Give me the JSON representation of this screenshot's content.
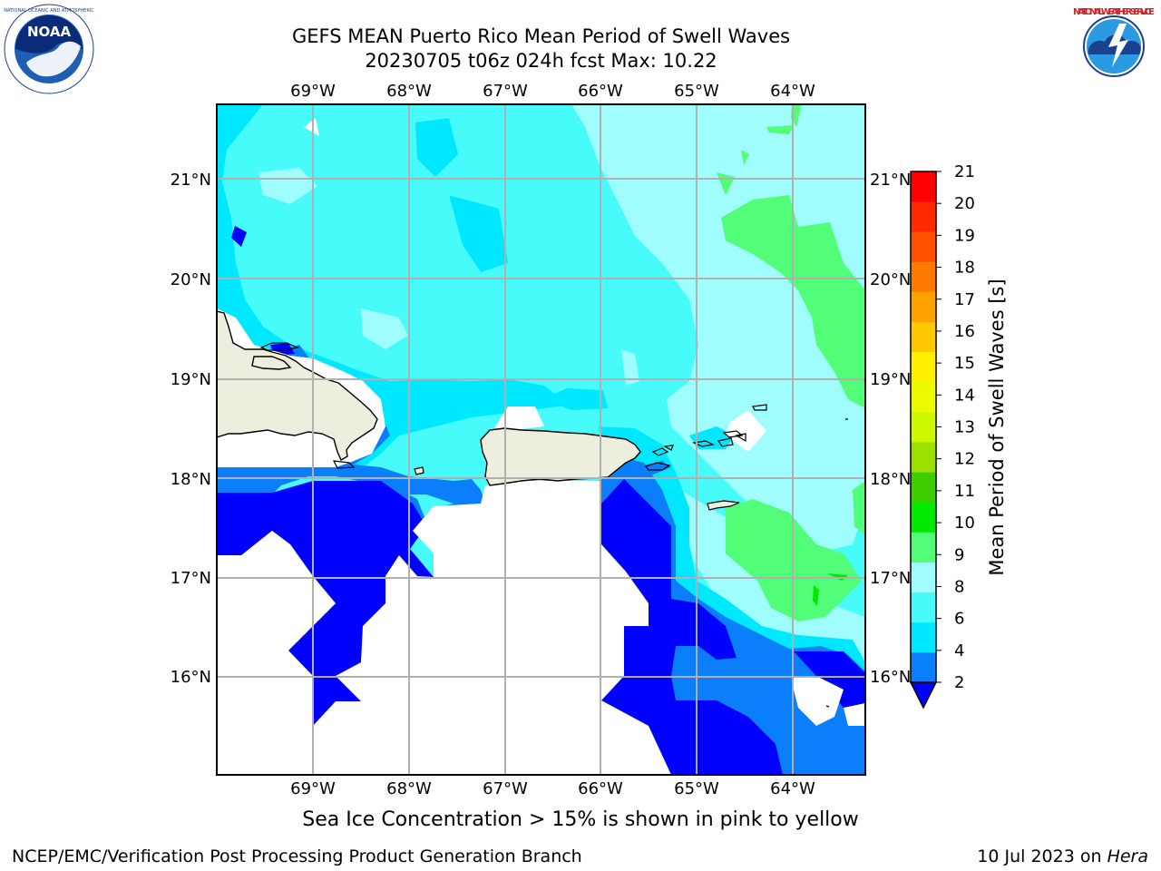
{
  "header": {
    "title_line1": "GEFS MEAN Puerto Rico Mean Period of Swell Waves",
    "title_line2": "20230705 t06z 024h fcst   Max: 10.22"
  },
  "logos": {
    "noaa": {
      "text": "NOAA",
      "icon": "noaa-logo"
    },
    "nws": {
      "text": "NATIONAL WEATHER SERVICE",
      "icon": "nws-logo"
    }
  },
  "map": {
    "lon_labels": [
      "69°W",
      "68°W",
      "67°W",
      "66°W",
      "65°W",
      "64°W"
    ],
    "lat_labels": [
      "21°N",
      "20°N",
      "19°N",
      "18°N",
      "17°N",
      "16°N"
    ],
    "extent": {
      "lon_min": -70.0,
      "lon_max": -63.25,
      "lat_min": 15.0,
      "lat_max": 21.75
    },
    "land_color": "#eeeede",
    "grid_color": "#b0b0b0"
  },
  "colorbar": {
    "label": "Mean Period of Swell Waves [s]",
    "ticks": [
      "21",
      "20",
      "19",
      "18",
      "17",
      "16",
      "15",
      "14",
      "13",
      "12",
      "11",
      "10",
      "9",
      "8",
      "6",
      "4",
      "2"
    ],
    "bins": [
      {
        "from": 2,
        "to": 4,
        "color": "#0b7ffb"
      },
      {
        "from": 4,
        "to": 6,
        "color": "#00e8ff"
      },
      {
        "from": 6,
        "to": 8,
        "color": "#47fbfb"
      },
      {
        "from": 8,
        "to": 9,
        "color": "#9ffdfd"
      },
      {
        "from": 9,
        "to": 10,
        "color": "#52fd77"
      },
      {
        "from": 10,
        "to": 11,
        "color": "#00ea00"
      },
      {
        "from": 11,
        "to": 12,
        "color": "#3dcd00"
      },
      {
        "from": 12,
        "to": 13,
        "color": "#9be000"
      },
      {
        "from": 13,
        "to": 14,
        "color": "#ccf900"
      },
      {
        "from": 14,
        "to": 15,
        "color": "#eefa00"
      },
      {
        "from": 15,
        "to": 16,
        "color": "#fff000"
      },
      {
        "from": 16,
        "to": 17,
        "color": "#ffc800"
      },
      {
        "from": 17,
        "to": 18,
        "color": "#ffa100"
      },
      {
        "from": 18,
        "to": 19,
        "color": "#ff7a00"
      },
      {
        "from": 19,
        "to": 20,
        "color": "#ff5000"
      },
      {
        "from": 20,
        "to": 21,
        "color": "#ff2a00"
      },
      {
        "from": 21,
        "to": 22,
        "color": "#ff0000"
      }
    ],
    "under_color": "#0000ff"
  },
  "footer": {
    "note": "Sea Ice Concentration > 15% is shown in pink to yellow",
    "credit_left": "NCEP/EMC/Verification Post Processing Product Generation Branch",
    "date": "10 Jul 2023 on",
    "machine": "Hera"
  }
}
